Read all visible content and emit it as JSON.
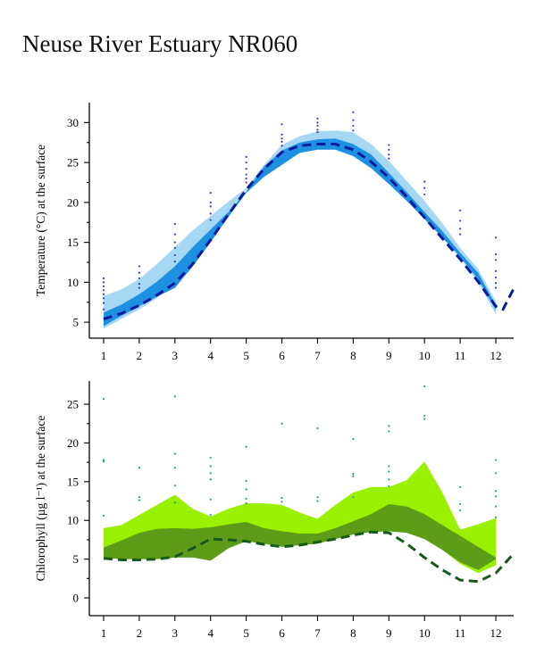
{
  "page": {
    "title": "Neuse River Estuary NR060"
  },
  "chart_data": [
    {
      "type": "area",
      "ylabel": "Temperature (°C) at the surface",
      "xlim": [
        0.6,
        12.5
      ],
      "ylim": [
        3,
        32.5
      ],
      "x_ticks": [
        "1",
        "2",
        "3",
        "4",
        "5",
        "6",
        "7",
        "8",
        "9",
        "10",
        "11",
        "12"
      ],
      "y_ticks": [
        "5",
        "10",
        "15",
        "20",
        "25",
        "30"
      ],
      "y_tick_values": [
        5,
        10,
        15,
        20,
        25,
        30
      ],
      "minor_y_ticks": [
        7.5,
        12.5,
        17.5,
        22.5,
        27.5
      ],
      "colors": {
        "outer_band": "#a6d8f4",
        "inner_band": "#1d90e2",
        "line": "#0a1a9c",
        "points": "#3a3ad6"
      },
      "x": [
        1,
        1.5,
        2,
        2.5,
        3,
        3.5,
        4,
        4.5,
        5,
        5.5,
        6,
        6.5,
        7,
        7.5,
        8,
        8.5,
        9,
        9.5,
        10,
        10.5,
        11,
        11.5,
        12
      ],
      "outer_band": {
        "lower": [
          4.2,
          5.4,
          6.6,
          8.0,
          10.0,
          12.8,
          15.8,
          18.8,
          21.6,
          23.6,
          25.2,
          26.5,
          27.0,
          27.0,
          26.3,
          24.8,
          22.8,
          20.6,
          18.2,
          15.6,
          13.0,
          10.0,
          6.0
        ],
        "upper": [
          8.3,
          9.1,
          10.4,
          12.3,
          14.4,
          16.5,
          18.3,
          20.1,
          21.8,
          24.7,
          27.2,
          28.3,
          28.9,
          29.0,
          28.8,
          27.3,
          25.2,
          22.7,
          20.2,
          17.4,
          14.3,
          11.7,
          7.6
        ]
      },
      "inner_band": {
        "lower": [
          4.5,
          5.8,
          7.0,
          8.2,
          9.3,
          12.0,
          15.0,
          18.2,
          21.2,
          23.2,
          24.7,
          26.2,
          26.6,
          26.6,
          25.8,
          24.3,
          22.3,
          20.2,
          17.9,
          15.6,
          13.2,
          10.4,
          6.5
        ],
        "upper": [
          6.2,
          7.2,
          8.5,
          10.1,
          12.0,
          14.4,
          16.6,
          18.8,
          21.4,
          24.5,
          26.5,
          27.5,
          27.9,
          28.0,
          27.3,
          26.0,
          23.7,
          21.3,
          18.8,
          16.4,
          13.7,
          11.2,
          7.1
        ]
      },
      "line_x": [
        1,
        1.5,
        2,
        2.5,
        3,
        3.5,
        4,
        4.5,
        5,
        5.5,
        6,
        6.5,
        7,
        7.5,
        8,
        8.5,
        9,
        9.5,
        10,
        10.5,
        11,
        11.5,
        12,
        12.2,
        12.5
      ],
      "line_y": [
        5.4,
        6.1,
        7.1,
        8.4,
        9.9,
        12.3,
        15.3,
        18.5,
        21.6,
        24.2,
        26.3,
        27.1,
        27.3,
        27.3,
        26.6,
        25.1,
        23.1,
        20.7,
        18.1,
        15.5,
        12.9,
        10.1,
        7.0,
        6.6,
        9.2
      ],
      "points": [
        [
          1,
          10.5
        ],
        [
          1,
          10.0
        ],
        [
          1,
          9.5
        ],
        [
          1,
          9.0
        ],
        [
          1,
          8.5
        ],
        [
          1,
          8.0
        ],
        [
          1,
          7.4
        ],
        [
          1,
          6.6
        ],
        [
          2,
          12.0
        ],
        [
          2,
          11.2
        ],
        [
          2,
          10.5
        ],
        [
          2,
          9.8
        ],
        [
          2,
          9.3
        ],
        [
          3,
          17.3
        ],
        [
          3,
          16.0
        ],
        [
          3,
          15.0
        ],
        [
          3,
          14.3
        ],
        [
          3,
          13.4
        ],
        [
          3,
          12.6
        ],
        [
          4,
          21.2
        ],
        [
          4,
          20.0
        ],
        [
          4,
          19.5
        ],
        [
          4,
          18.6
        ],
        [
          4,
          17.8
        ],
        [
          5,
          25.7
        ],
        [
          5,
          25.0
        ],
        [
          5,
          24.2
        ],
        [
          5,
          23.5
        ],
        [
          5,
          23.0
        ],
        [
          5,
          22.5
        ],
        [
          6,
          29.8
        ],
        [
          6,
          28.5
        ],
        [
          6,
          28.0
        ],
        [
          6,
          27.6
        ],
        [
          6,
          27.1
        ],
        [
          7,
          30.5
        ],
        [
          7,
          30.0
        ],
        [
          7,
          29.6
        ],
        [
          7,
          29.1
        ],
        [
          7,
          28.8
        ],
        [
          8,
          31.3
        ],
        [
          8,
          30.3
        ],
        [
          8,
          29.6
        ],
        [
          8,
          29.0
        ],
        [
          9,
          27.2
        ],
        [
          9,
          26.6
        ],
        [
          9,
          26.0
        ],
        [
          9,
          25.5
        ],
        [
          10,
          22.6
        ],
        [
          10,
          21.8
        ],
        [
          10,
          21.0
        ],
        [
          11,
          19.0
        ],
        [
          11,
          17.7
        ],
        [
          11,
          16.7
        ],
        [
          11,
          16.0
        ],
        [
          12,
          15.6
        ],
        [
          12,
          13.5
        ],
        [
          12,
          12.8
        ],
        [
          12,
          11.4
        ],
        [
          12,
          10.6
        ],
        [
          12,
          9.9
        ],
        [
          12,
          9.3
        ]
      ]
    },
    {
      "type": "area",
      "ylabel": "Chlorophyll (µg l⁻¹) at the surface",
      "xlim": [
        0.6,
        12.5
      ],
      "ylim": [
        -2.3,
        28
      ],
      "x_ticks": [
        "1",
        "2",
        "3",
        "4",
        "5",
        "6",
        "7",
        "8",
        "9",
        "10",
        "11",
        "12"
      ],
      "y_ticks": [
        "0",
        "5",
        "10",
        "15",
        "20",
        "25"
      ],
      "y_tick_values": [
        0,
        5,
        10,
        15,
        20,
        25
      ],
      "minor_y_ticks": [
        2.5,
        7.5,
        12.5,
        17.5,
        22.5
      ],
      "colors": {
        "outer_band": "#99f000",
        "inner_band": "#5d9c18",
        "line": "#145a1a",
        "points": "#20a090"
      },
      "x": [
        1,
        1.5,
        2,
        2.5,
        3,
        3.5,
        4,
        4.5,
        5,
        5.5,
        6,
        6.5,
        7,
        7.5,
        8,
        8.5,
        9,
        9.5,
        10,
        10.5,
        11,
        11.5,
        12
      ],
      "outer_band": {
        "lower": [
          5.2,
          5.0,
          5.0,
          5.0,
          5.2,
          5.4,
          6.4,
          7.0,
          7.3,
          7.0,
          6.6,
          6.8,
          7.0,
          7.6,
          8.2,
          8.5,
          8.6,
          8.4,
          7.6,
          6.2,
          4.4,
          3.2,
          4.2
        ],
        "upper": [
          9.0,
          9.4,
          10.7,
          12.0,
          13.3,
          11.5,
          10.5,
          11.5,
          12.2,
          12.2,
          12.0,
          11.0,
          10.2,
          12.0,
          13.6,
          14.3,
          14.3,
          15.2,
          17.6,
          13.6,
          8.8,
          9.5,
          10.3
        ]
      },
      "inner_band": {
        "lower": [
          5.2,
          5.0,
          5.0,
          5.0,
          5.2,
          5.2,
          4.8,
          6.4,
          7.3,
          7.0,
          6.6,
          6.8,
          7.0,
          7.6,
          8.2,
          8.5,
          8.6,
          8.4,
          7.6,
          6.2,
          4.6,
          3.6,
          5.0
        ],
        "upper": [
          6.5,
          7.4,
          8.4,
          8.9,
          9.0,
          8.9,
          9.1,
          9.5,
          9.8,
          9.0,
          8.6,
          8.3,
          8.3,
          9.0,
          9.9,
          10.8,
          12.1,
          11.8,
          10.8,
          9.4,
          8.0,
          6.6,
          5.2
        ]
      },
      "line_x": [
        1,
        1.5,
        2,
        2.5,
        3,
        3.5,
        4,
        4.5,
        5,
        5.5,
        6,
        6.5,
        7,
        7.5,
        8,
        8.5,
        9,
        9.5,
        10,
        10.5,
        11,
        11.5,
        12,
        12.5
      ],
      "line_y": [
        5.1,
        4.9,
        4.9,
        5.0,
        5.3,
        6.4,
        7.6,
        7.5,
        7.3,
        6.9,
        6.6,
        6.8,
        7.2,
        7.6,
        8.1,
        8.5,
        8.4,
        7.0,
        5.2,
        3.6,
        2.3,
        2.1,
        3.2,
        5.7
      ],
      "points": [
        [
          1,
          25.7
        ],
        [
          1,
          17.8
        ],
        [
          1,
          17.6
        ],
        [
          1,
          10.6
        ],
        [
          2,
          16.8
        ],
        [
          2,
          13.0
        ],
        [
          2,
          12.6
        ],
        [
          3,
          26.0
        ],
        [
          3,
          18.6
        ],
        [
          3,
          16.8
        ],
        [
          3,
          14.5
        ],
        [
          3,
          12.3
        ],
        [
          4,
          18.1
        ],
        [
          4,
          17.0
        ],
        [
          4,
          16.1
        ],
        [
          4,
          15.3
        ],
        [
          4,
          12.7
        ],
        [
          4,
          10.7
        ],
        [
          5,
          19.5
        ],
        [
          5,
          15.1
        ],
        [
          5,
          14.0
        ],
        [
          5,
          12.8
        ],
        [
          5,
          12.2
        ],
        [
          6,
          22.5
        ],
        [
          6,
          12.9
        ],
        [
          6,
          12.4
        ],
        [
          7,
          21.9
        ],
        [
          7,
          13.0
        ],
        [
          7,
          12.5
        ],
        [
          8,
          20.5
        ],
        [
          8,
          16.0
        ],
        [
          8,
          15.7
        ],
        [
          8,
          13.0
        ],
        [
          9,
          22.2
        ],
        [
          9,
          21.5
        ],
        [
          9,
          17.0
        ],
        [
          9,
          16.3
        ],
        [
          9,
          15.3
        ],
        [
          9,
          14.4
        ],
        [
          10,
          27.3
        ],
        [
          10,
          23.5
        ],
        [
          10,
          23.1
        ],
        [
          11,
          14.3
        ],
        [
          11,
          12.1
        ],
        [
          11,
          11.3
        ],
        [
          12,
          17.8
        ],
        [
          12,
          16.1
        ],
        [
          12,
          13.8
        ],
        [
          12,
          13.1
        ],
        [
          12,
          11.8
        ],
        [
          12,
          10.4
        ]
      ]
    }
  ]
}
